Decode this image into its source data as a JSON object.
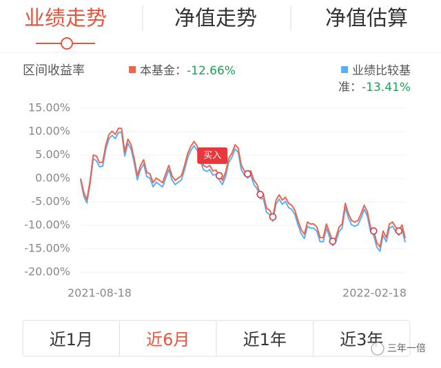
{
  "tabs": [
    "业绩走势",
    "净值走势",
    "净值估算"
  ],
  "active_tab": 0,
  "periods": [
    "近1月",
    "近6月",
    "近1年",
    "近3年"
  ],
  "active_period": 1,
  "watermark": "三年一倍",
  "chart_data": {
    "type": "line",
    "title": "区间收益率",
    "separator": "：",
    "categories": [
      "2021-08-18",
      null,
      null,
      null,
      null,
      null,
      null,
      null,
      null,
      null,
      null,
      null,
      null,
      null,
      null,
      null,
      null,
      null,
      null,
      null,
      null,
      null,
      null,
      null,
      null,
      null,
      null,
      null,
      null,
      null,
      null,
      null,
      null,
      null,
      null,
      null,
      null,
      null,
      null,
      null,
      null,
      null,
      null,
      null,
      null,
      null,
      null,
      null,
      null,
      null,
      null,
      null,
      null,
      null,
      null,
      null,
      null,
      null,
      null,
      null,
      null,
      null,
      null,
      null,
      null,
      null,
      null,
      null,
      null,
      null,
      null,
      null,
      null,
      null,
      null,
      null,
      null,
      null,
      null,
      null,
      null,
      null,
      null,
      null,
      null,
      null,
      null,
      null,
      null,
      null,
      null,
      null,
      null,
      null,
      null,
      null,
      null,
      null,
      null,
      null,
      null,
      null,
      null,
      "2022-02-18"
    ],
    "series": [
      {
        "name": "本基金",
        "color": "#f0644b",
        "total_return": {
          "value": -12.66,
          "label": "-12.66%"
        },
        "values": [
          0,
          -3,
          -4.5,
          -0.5,
          5,
          4.8,
          3.4,
          3.5,
          7.2,
          9.4,
          10.1,
          9.4,
          10.7,
          10.7,
          5.7,
          8.4,
          7.2,
          4.3,
          0.6,
          2.8,
          4,
          1.3,
          1,
          -0.9,
          0.1,
          -0.4,
          -0.9,
          1,
          2.8,
          0.6,
          -0.4,
          0.1,
          0.6,
          2.8,
          5.4,
          6.9,
          7.9,
          6.9,
          4.6,
          2.8,
          2.4,
          2.8,
          1.6,
          1.8,
          0.6,
          -0.4,
          1.3,
          4.3,
          5.4,
          7.2,
          6.5,
          2.8,
          1.6,
          1,
          1.6,
          -0.4,
          -1.3,
          -3.4,
          -3.4,
          -6.3,
          -6.8,
          -8.2,
          -4.6,
          -3.5,
          -4.6,
          -4,
          -5.3,
          -5.7,
          -6.8,
          -9,
          -10.9,
          -11.9,
          -9.3,
          -9.7,
          -9.7,
          -10.4,
          -12.6,
          -12.6,
          -9.7,
          -11.6,
          -13.4,
          -12.6,
          -10.4,
          -9.7,
          -5.3,
          -7.5,
          -9,
          -9.3,
          -9,
          -7.5,
          -5.7,
          -7.1,
          -10.4,
          -11.2,
          -13.7,
          -14.6,
          -11.2,
          -12.6,
          -9.7,
          -9.3,
          -10.4,
          -11.2,
          -9.9,
          -12.7
        ]
      },
      {
        "name": "业绩比较基准",
        "color": "#5aaef5",
        "total_return": {
          "value": -13.41,
          "label": "-13.41%"
        },
        "values": [
          -0.3,
          -3.8,
          -5.2,
          -1.3,
          4.2,
          3.8,
          2.5,
          2.6,
          6.3,
          8.5,
          9.2,
          8.5,
          9.8,
          9.9,
          4.8,
          7.5,
          6.3,
          3.4,
          -0.3,
          1.9,
          3.1,
          0.4,
          0.1,
          -1.8,
          -0.8,
          -1.3,
          -1.8,
          0.1,
          1.9,
          -0.3,
          -1.3,
          -0.8,
          -0.3,
          1.9,
          4.5,
          6,
          7,
          6,
          3.7,
          1.9,
          1.5,
          1.9,
          0.7,
          0.9,
          -0.3,
          -1.3,
          0.4,
          3.4,
          4.5,
          6.3,
          5.6,
          1.9,
          0.7,
          0.1,
          0.7,
          -1.3,
          -2.2,
          -4.3,
          -4.3,
          -7.2,
          -7.7,
          -9.1,
          -5.5,
          -4.4,
          -5.5,
          -4.9,
          -6.2,
          -6.6,
          -7.7,
          -9.9,
          -11.8,
          -12.8,
          -10.2,
          -10.6,
          -10.6,
          -11.3,
          -13.5,
          -13.5,
          -10.6,
          -12.5,
          -14.3,
          -13.5,
          -11.3,
          -10.6,
          -6.2,
          -8.4,
          -9.9,
          -10.2,
          -9.9,
          -8.4,
          -6.6,
          -8,
          -11.3,
          -12.1,
          -14.6,
          -15.5,
          -12.1,
          -13.5,
          -10.6,
          -10.2,
          -11.3,
          -12.1,
          -10.8,
          -13.6
        ]
      }
    ],
    "markers": [
      44,
      53,
      57,
      61,
      80,
      93,
      101
    ],
    "marker_label": "买入",
    "ylim": [
      -20,
      15
    ],
    "yticks": [
      {
        "value": 15,
        "label": "15.00%"
      },
      {
        "value": 10,
        "label": "10.00%"
      },
      {
        "value": 5,
        "label": "5.00%"
      },
      {
        "value": 0,
        "label": "0.00%"
      },
      {
        "value": -5,
        "label": "-5.00%"
      },
      {
        "value": -10,
        "label": "-10.00%"
      },
      {
        "value": -15,
        "label": "-15.00%"
      },
      {
        "value": -20,
        "label": "-20.00%"
      }
    ],
    "grid": true
  }
}
